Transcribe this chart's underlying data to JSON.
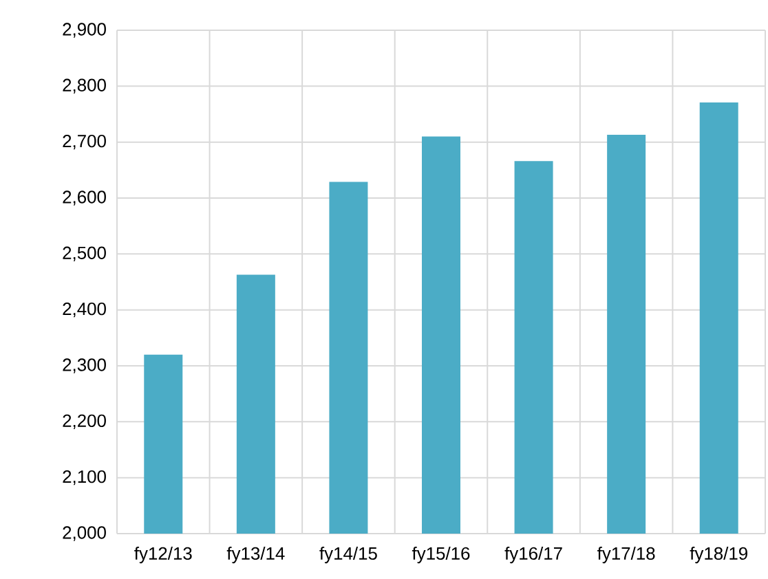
{
  "chart_data": {
    "type": "bar",
    "categories": [
      "fy12/13",
      "fy13/14",
      "fy14/15",
      "fy15/16",
      "fy16/17",
      "fy17/18",
      "fy18/19"
    ],
    "values": [
      2320,
      2463,
      2629,
      2710,
      2666,
      2713,
      2771
    ],
    "color": "#4bacc6",
    "ylim": [
      2000,
      2900
    ],
    "yticks": [
      {
        "value": 2000,
        "label": "2,000"
      },
      {
        "value": 2100,
        "label": "2,100"
      },
      {
        "value": 2200,
        "label": "2,200"
      },
      {
        "value": 2300,
        "label": "2,300"
      },
      {
        "value": 2400,
        "label": "2,400"
      },
      {
        "value": 2500,
        "label": "2,500"
      },
      {
        "value": 2600,
        "label": "2,600"
      },
      {
        "value": 2700,
        "label": "2,700"
      },
      {
        "value": 2800,
        "label": "2,800"
      },
      {
        "value": 2900,
        "label": "2,900"
      }
    ],
    "grid": true
  }
}
